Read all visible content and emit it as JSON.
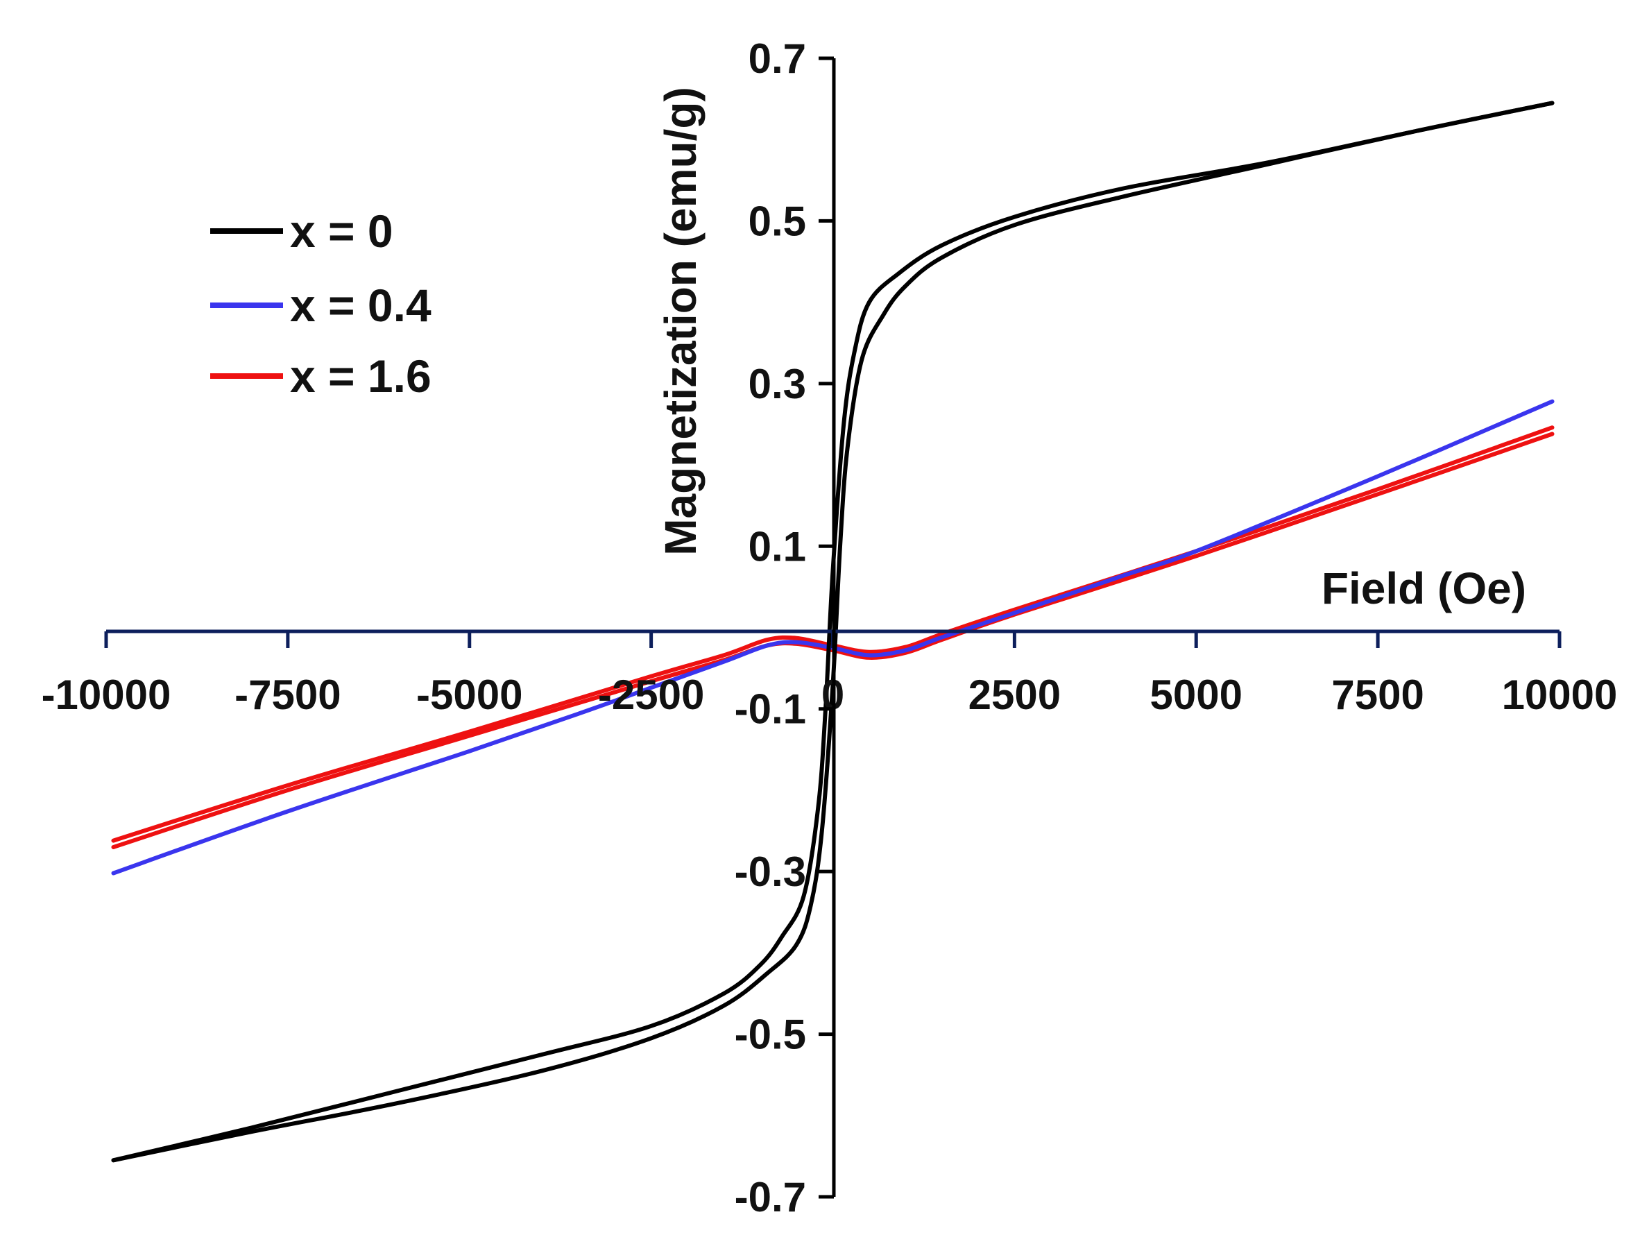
{
  "chart_data": {
    "type": "line",
    "title": "",
    "xlabel": "Field (Oe)",
    "ylabel": "Magnetization (emu/g)",
    "xlim": [
      -10000,
      10000
    ],
    "ylim": [
      -0.7,
      0.7
    ],
    "x_ticks": [
      -10000,
      -7500,
      -5000,
      -2500,
      0,
      2500,
      5000,
      7500,
      10000
    ],
    "x_tick_labels": [
      "-10000",
      "-7500",
      "-5000",
      "-2500",
      "0",
      "2500",
      "5000",
      "7500",
      "10000"
    ],
    "y_ticks": [
      -0.7,
      -0.5,
      -0.3,
      -0.1,
      0.1,
      0.3,
      0.5,
      0.7
    ],
    "y_tick_labels": [
      "-0.7",
      "-0.5",
      "-0.3",
      "-0.1",
      "0.1",
      "0.3",
      "0.5",
      "0.7"
    ],
    "grid": false,
    "legend_position": "top-left",
    "series": [
      {
        "name": "x = 0",
        "color": "#000000",
        "branches": [
          {
            "label": "ascending",
            "x": [
              -9900,
              -8000,
              -6000,
              -4000,
              -2500,
              -1500,
              -900,
              -500,
              -300,
              -150,
              0,
              100,
              200,
              400,
              700,
              1000,
              1500,
              2500,
              4000,
              6000,
              8000,
              9900
            ],
            "y": [
              -0.655,
              -0.62,
              -0.585,
              -0.545,
              -0.505,
              -0.465,
              -0.425,
              -0.39,
              -0.34,
              -0.25,
              -0.07,
              0.1,
              0.22,
              0.33,
              0.385,
              0.42,
              0.455,
              0.495,
              0.53,
              0.57,
              0.61,
              0.645
            ]
          },
          {
            "label": "descending",
            "x": [
              9900,
              8000,
              6000,
              4000,
              2500,
              1500,
              900,
              500,
              300,
              150,
              0,
              -100,
              -200,
              -400,
              -700,
              -1000,
              -1500,
              -2500,
              -4000,
              -6000,
              -8000,
              -9900
            ],
            "y": [
              0.645,
              0.61,
              0.572,
              0.54,
              0.505,
              0.47,
              0.435,
              0.4,
              0.34,
              0.25,
              0.07,
              -0.1,
              -0.22,
              -0.33,
              -0.38,
              -0.415,
              -0.45,
              -0.49,
              -0.525,
              -0.57,
              -0.615,
              -0.655
            ]
          }
        ]
      },
      {
        "name": "x = 0.4",
        "color": "#3a35ee",
        "branches": [
          {
            "label": "main",
            "x": [
              -9900,
              -7500,
              -5000,
              -3500,
              -2500,
              -1500,
              -900,
              -500,
              0,
              500,
              1000,
              1500,
              2500,
              4000,
              5000,
              7500,
              9900
            ],
            "y": [
              -0.302,
              -0.226,
              -0.152,
              -0.106,
              -0.074,
              -0.042,
              -0.022,
              -0.018,
              -0.025,
              -0.034,
              -0.028,
              -0.012,
              0.018,
              0.064,
              0.094,
              0.186,
              0.278
            ]
          }
        ]
      },
      {
        "name": "x = 1.6",
        "color": "#ee1111",
        "branches": [
          {
            "label": "upper",
            "x": [
              -9900,
              -7500,
              -5000,
              -2500,
              -1500,
              -900,
              -500,
              0,
              500,
              1000,
              1500,
              2500,
              5000,
              7500,
              9900
            ],
            "y": [
              -0.262,
              -0.194,
              -0.128,
              -0.06,
              -0.034,
              -0.015,
              -0.013,
              -0.022,
              -0.03,
              -0.024,
              -0.008,
              0.022,
              0.094,
              0.17,
              0.246
            ]
          },
          {
            "label": "lower",
            "x": [
              -9900,
              -7500,
              -5000,
              -2500,
              -1500,
              -900,
              -500,
              0,
              500,
              1000,
              1500,
              2500,
              5000,
              7500,
              9900
            ],
            "y": [
              -0.27,
              -0.2,
              -0.133,
              -0.066,
              -0.04,
              -0.022,
              -0.02,
              -0.028,
              -0.037,
              -0.031,
              -0.015,
              0.016,
              0.088,
              0.164,
              0.238
            ]
          }
        ]
      }
    ]
  }
}
